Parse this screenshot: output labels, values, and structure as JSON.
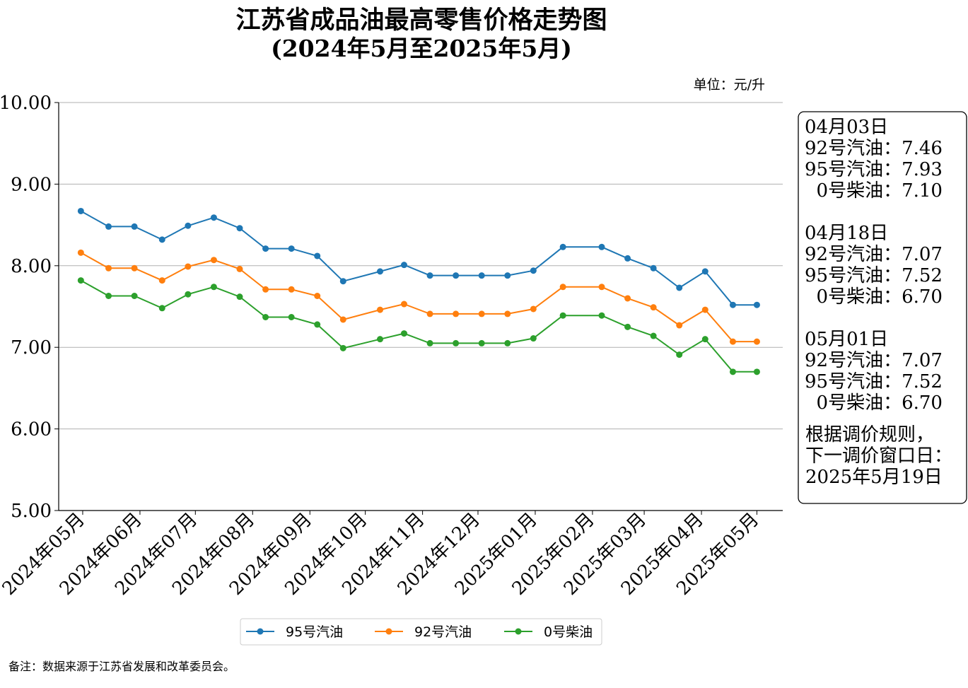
{
  "chart_data": {
    "type": "line",
    "title": "江苏省成品油最高零售价格走势图",
    "subtitle": "(2024年5月至2025年5月)",
    "unit_label": "单位：元/升",
    "ylim": [
      5.0,
      10.0
    ],
    "yticks": [
      "10.00",
      "9.00",
      "8.00",
      "7.00",
      "6.00",
      "5.00"
    ],
    "grid": true,
    "legend_position": "bottom-center",
    "x": [
      "2024-04-30",
      "2024-05-15",
      "2024-05-29",
      "2024-06-13",
      "2024-06-27",
      "2024-07-11",
      "2024-07-25",
      "2024-08-08",
      "2024-08-22",
      "2024-09-05",
      "2024-09-19",
      "2024-10-09",
      "2024-10-22",
      "2024-11-05",
      "2024-11-19",
      "2024-12-03",
      "2024-12-17",
      "2024-12-31",
      "2025-01-16",
      "2025-02-06",
      "2025-02-20",
      "2025-03-06",
      "2025-03-20",
      "2025-04-03",
      "2025-04-18",
      "2025-05-01"
    ],
    "xticks": [
      {
        "label": "2024年05月",
        "date": "2024-05-01"
      },
      {
        "label": "2024年06月",
        "date": "2024-06-01"
      },
      {
        "label": "2024年07月",
        "date": "2024-07-01"
      },
      {
        "label": "2024年08月",
        "date": "2024-08-01"
      },
      {
        "label": "2024年09月",
        "date": "2024-09-01"
      },
      {
        "label": "2024年10月",
        "date": "2024-10-01"
      },
      {
        "label": "2024年11月",
        "date": "2024-11-01"
      },
      {
        "label": "2024年12月",
        "date": "2024-12-01"
      },
      {
        "label": "2025年01月",
        "date": "2025-01-01"
      },
      {
        "label": "2025年02月",
        "date": "2025-02-01"
      },
      {
        "label": "2025年03月",
        "date": "2025-03-01"
      },
      {
        "label": "2025年04月",
        "date": "2025-04-01"
      },
      {
        "label": "2025年05月",
        "date": "2025-05-01"
      }
    ],
    "series": [
      {
        "name": "95号汽油",
        "color": "#1f77b4",
        "values": [
          8.67,
          8.48,
          8.48,
          8.32,
          8.49,
          8.59,
          8.46,
          8.21,
          8.21,
          8.12,
          7.81,
          7.93,
          8.01,
          7.88,
          7.88,
          7.88,
          7.88,
          7.94,
          8.23,
          8.23,
          8.09,
          7.97,
          7.73,
          7.93,
          7.52,
          7.52
        ]
      },
      {
        "name": "92号汽油",
        "color": "#ff7f0e",
        "values": [
          8.16,
          7.97,
          7.97,
          7.82,
          7.99,
          8.07,
          7.96,
          7.71,
          7.71,
          7.63,
          7.34,
          7.46,
          7.53,
          7.41,
          7.41,
          7.41,
          7.41,
          7.47,
          7.74,
          7.74,
          7.6,
          7.49,
          7.27,
          7.46,
          7.07,
          7.07
        ]
      },
      {
        "name": "0号柴油",
        "color": "#2ca02c",
        "values": [
          7.82,
          7.63,
          7.63,
          7.48,
          7.65,
          7.74,
          7.62,
          7.37,
          7.37,
          7.28,
          6.99,
          7.1,
          7.17,
          7.05,
          7.05,
          7.05,
          7.05,
          7.11,
          7.39,
          7.39,
          7.25,
          7.14,
          6.91,
          7.1,
          6.7,
          6.7
        ]
      }
    ],
    "info_box": [
      {
        "date": "04月03日",
        "lines": [
          "92号汽油：7.46",
          "95号汽油：7.93",
          "  0号柴油：7.10"
        ]
      },
      {
        "date": "04月18日",
        "lines": [
          "92号汽油：7.07",
          "95号汽油：7.52",
          "  0号柴油：6.70"
        ]
      },
      {
        "date": "05月01日",
        "lines": [
          "92号汽油：7.07",
          "95号汽油：7.52",
          "  0号柴油：6.70"
        ]
      }
    ],
    "next_window": [
      "根据调价规则，",
      "下一调价窗口日：",
      "2025年5月19日"
    ],
    "footnote": "备注：数据来源于江苏省发展和改革委员会。"
  }
}
